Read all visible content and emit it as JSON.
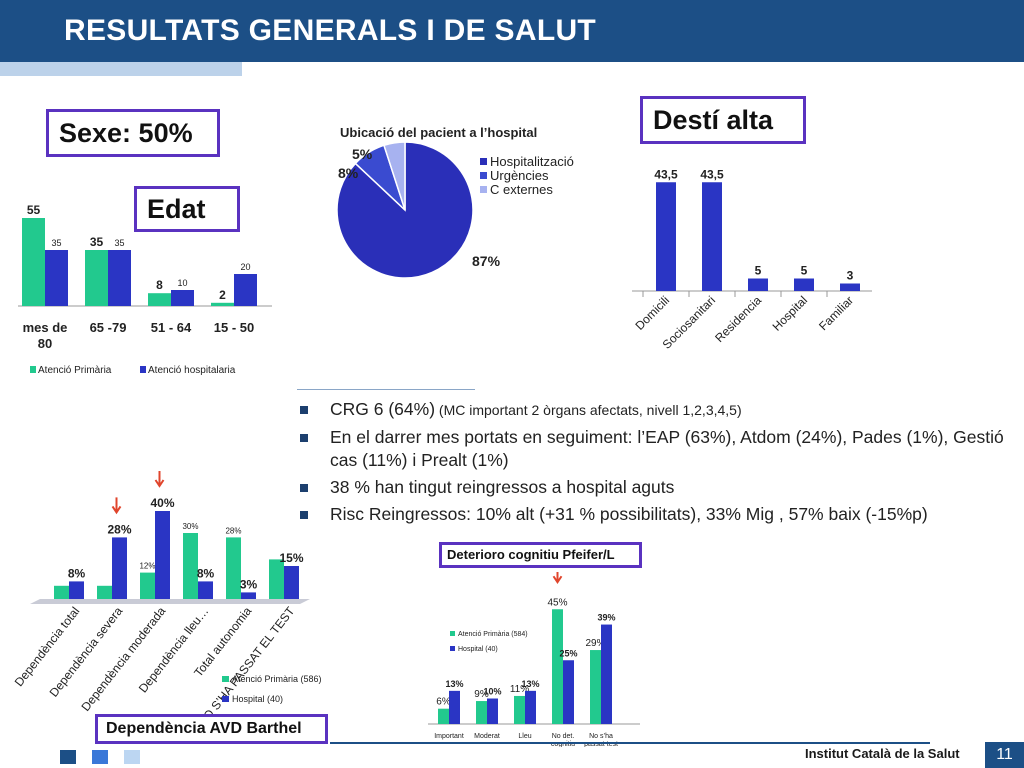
{
  "header": {
    "title": "RESULTATS GENERALS I DE SALUT"
  },
  "labels": {
    "sexe": "Sexe: 50%",
    "edat": "Edat",
    "desti_alta": "Destí alta",
    "pfeifer": "Deterioro cognitiu Pfeifer/L",
    "barthel": "Dependència AVD   Barthel"
  },
  "bullets": [
    {
      "main": "CRG 6  (64%)",
      "small": " (MC important 2 òrgans afectats, nivell 1,2,3,4,5)"
    },
    {
      "main": "En el darrer mes portats en seguiment: l’EAP (63%), Atdom (24%), Pades (1%), Gestió cas (11%) i Prealt (1%)",
      "small": ""
    },
    {
      "main": "38 % han tingut reingressos a hospital aguts",
      "small": ""
    },
    {
      "main": "Risc Reingressos: 10% alt (+31 % possibilitats), 33% Mig , 57% baix (-15%p)",
      "small": ""
    }
  ],
  "footer": {
    "institution": "Institut Català de la Salut",
    "page": "11"
  },
  "colors": {
    "primaria": "#22c98e",
    "hospital": "#2a35c4",
    "header": "#1c4f86",
    "box_border": "#5a32c0",
    "arrow": "#e0452c"
  },
  "chart_data": [
    {
      "id": "edat",
      "type": "bar",
      "categories": [
        "mes de 80",
        "65 -79",
        "51 - 64",
        "15 - 50"
      ],
      "series": [
        {
          "name": "Atenció Primària",
          "values": [
            55,
            35,
            8,
            2
          ],
          "labels": [
            "55",
            "35",
            "8",
            "2"
          ]
        },
        {
          "name": "Atenció hospitalaria",
          "values": [
            35,
            35,
            10,
            20
          ],
          "labels": [
            "35",
            "35",
            "10",
            "20"
          ]
        }
      ],
      "legend": "bottom"
    },
    {
      "id": "ubicacio",
      "type": "pie",
      "title": "Ubicació del pacient a l’hospital",
      "slices": [
        {
          "name": "Hospitalització",
          "value": 87,
          "label": "87%",
          "color": "#2a2fb8"
        },
        {
          "name": "Urgències",
          "value": 8,
          "label": "8%",
          "color": "#3a4bd0"
        },
        {
          "name": "C externes",
          "value": 5,
          "label": "5%",
          "color": "#a7b2f0"
        }
      ],
      "legend": "right"
    },
    {
      "id": "desti",
      "type": "bar",
      "categories": [
        "Domicili",
        "Sociosanitari",
        "Residencia",
        "Hospital",
        "Familiar"
      ],
      "series": [
        {
          "name": "",
          "values": [
            43.5,
            43.5,
            5,
            5,
            3
          ],
          "labels": [
            "43,5",
            "43,5",
            "5",
            "5",
            "3"
          ]
        }
      ]
    },
    {
      "id": "barthel",
      "type": "bar",
      "categories": [
        "Dependència total",
        "Dependència severa",
        "Dependència moderada",
        "Dependència lleu…",
        "Total autonomia",
        "NO S’HA PASSAT EL TEST"
      ],
      "series": [
        {
          "name": "Atenció Primària (586)",
          "values": [
            6,
            6,
            12,
            30,
            28,
            18
          ],
          "labels": [
            "",
            "",
            "12%",
            "30%",
            "28%",
            ""
          ]
        },
        {
          "name": "Hospital (40)",
          "values": [
            8,
            28,
            40,
            8,
            3,
            15
          ],
          "labels": [
            "8%",
            "28%",
            "40%",
            "8%",
            "3%",
            "15%"
          ]
        }
      ],
      "legend": "bottom-right"
    },
    {
      "id": "pfeifer",
      "type": "bar",
      "categories": [
        "Important",
        "Moderat",
        "Lleu",
        "No det. cognitiu",
        "No s’ha passat test"
      ],
      "series": [
        {
          "name": "Atenció Primària (584)",
          "values": [
            6,
            9,
            11,
            45,
            29
          ],
          "labels": [
            "6%",
            "9%",
            "11%",
            "45%",
            "29%"
          ]
        },
        {
          "name": "Hospital (40)",
          "values": [
            13,
            10,
            13,
            25,
            39
          ],
          "labels": [
            "13%",
            "10%",
            "13%",
            "25%",
            "39%"
          ]
        }
      ],
      "legend": "left"
    }
  ]
}
